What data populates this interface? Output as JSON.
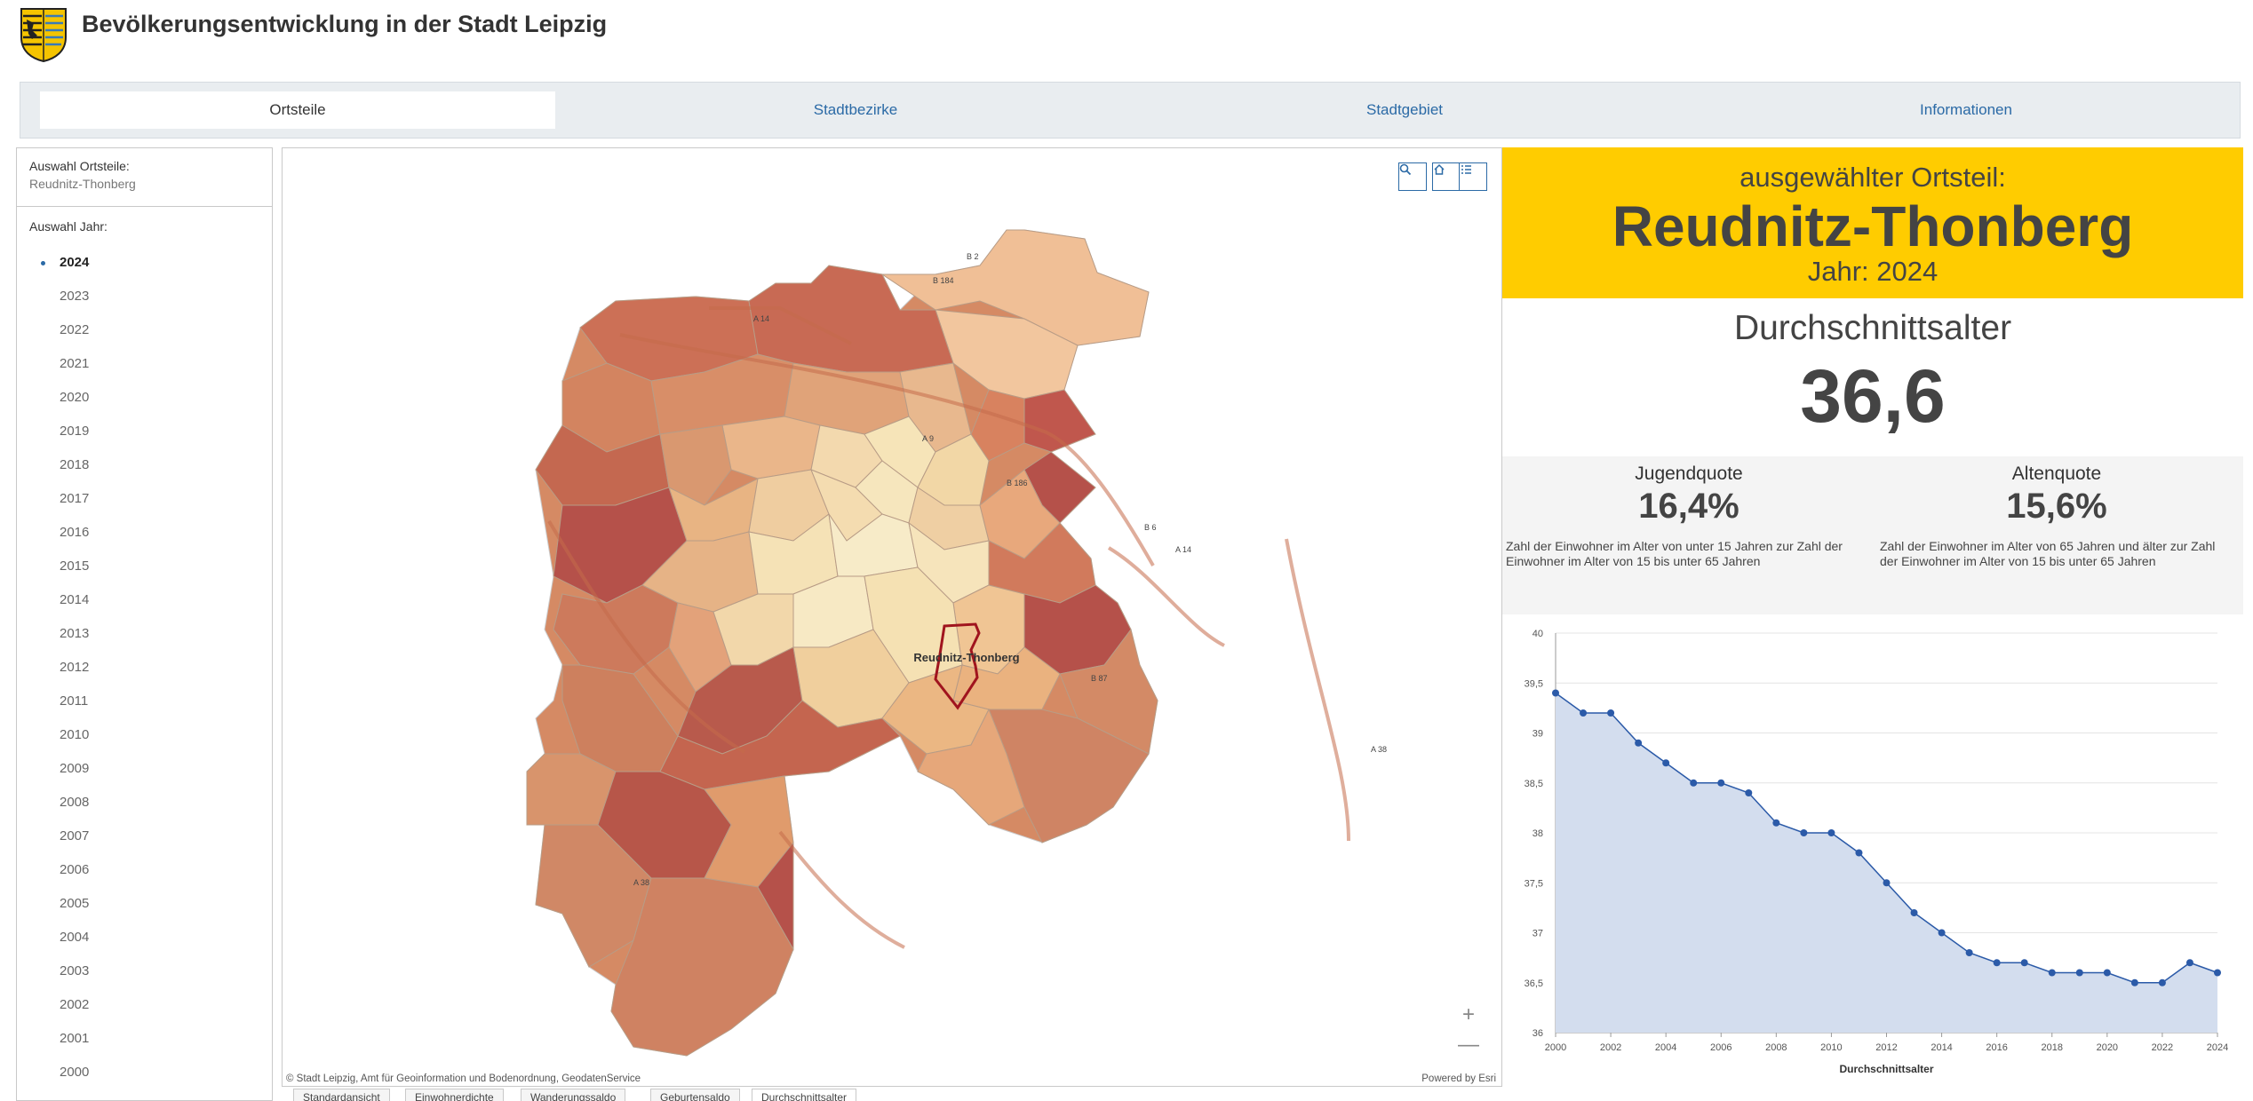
{
  "header": {
    "title": "Bevölkerungsentwicklung in der Stadt Leipzig"
  },
  "tabs": [
    {
      "label": "Ortsteile",
      "active": true
    },
    {
      "label": "Stadtbezirke",
      "active": false
    },
    {
      "label": "Stadtgebiet",
      "active": false
    },
    {
      "label": "Informationen",
      "active": false
    }
  ],
  "leftpanel": {
    "ortsteil_label": "Auswahl Ortsteile:",
    "ortsteil_value": "Reudnitz-Thonberg",
    "year_label": "Auswahl Jahr:",
    "years": [
      "2024",
      "2023",
      "2022",
      "2021",
      "2020",
      "2019",
      "2018",
      "2017",
      "2016",
      "2015",
      "2014",
      "2013",
      "2012",
      "2011",
      "2010",
      "2009",
      "2008",
      "2007",
      "2006",
      "2005",
      "2004",
      "2003",
      "2002",
      "2001",
      "2000"
    ],
    "selected_year": "2024"
  },
  "map": {
    "selected_label": "Reudnitz-Thonberg",
    "road_labels": [
      "B 184",
      "B 2",
      "A 14",
      "B 6",
      "B 87",
      "A 9",
      "A 38",
      "B 186",
      "A 14",
      "A 38"
    ],
    "attribution": "© Stadt Leipzig, Amt für Geoinformation und Bodenordnung, GeodatenService",
    "powered_by": "Powered by Esri",
    "tools": [
      "search-icon",
      "home-icon",
      "legend-icon"
    ],
    "zoom_in": "+",
    "zoom_out": "—",
    "colors": {
      "selected_outline": "#a0141e",
      "low": "#f6e6b8",
      "mid": "#e5a878",
      "high": "#b5514a"
    }
  },
  "bottom_tabs": [
    "Standardansicht",
    "Einwohnerdichte",
    "Wanderungssaldo",
    "Geburtensaldo",
    "Durchschnittsalter"
  ],
  "bottom_tab_active": "Durchschnittsalter",
  "summary": {
    "subtitle": "ausgewählter Ortsteil:",
    "name": "Reudnitz-Thonberg",
    "year": "Jahr: 2024",
    "metric_label": "Durchschnittsalter",
    "metric_value": "36,6",
    "jugend_title": "Jugendquote",
    "jugend_value": "16,4%",
    "jugend_desc": "Zahl der Einwohner im Alter von unter 15 Jahren zur Zahl der Einwohner im Alter von 15 bis unter 65 Jahren",
    "alten_title": "Altenquote",
    "alten_value": "15,6%",
    "alten_desc": "Zahl der Einwohner im Alter von 65 Jahren und älter zur Zahl der Einwohner im Alter von 15 bis unter 65 Jahren",
    "accent_color": "#ffcc00"
  },
  "chart_data": {
    "type": "area",
    "title": "",
    "xlabel": "Durchschnittsalter",
    "ylabel": "",
    "x": [
      2000,
      2001,
      2002,
      2003,
      2004,
      2005,
      2006,
      2007,
      2008,
      2009,
      2010,
      2011,
      2012,
      2013,
      2014,
      2015,
      2016,
      2017,
      2018,
      2019,
      2020,
      2021,
      2022,
      2023,
      2024
    ],
    "values": [
      39.4,
      39.2,
      39.2,
      38.9,
      38.7,
      38.5,
      38.5,
      38.4,
      38.1,
      38.0,
      38.0,
      37.8,
      37.5,
      37.2,
      37.0,
      36.8,
      36.7,
      36.7,
      36.6,
      36.6,
      36.6,
      36.5,
      36.5,
      36.7,
      36.6
    ],
    "ylim": [
      36,
      40
    ],
    "yticks": [
      "36",
      "36,5",
      "37",
      "37,5",
      "38",
      "38,5",
      "39",
      "39,5",
      "40"
    ],
    "xticks": [
      "2000",
      "2002",
      "2004",
      "2006",
      "2008",
      "2010",
      "2012",
      "2014",
      "2016",
      "2018",
      "2020",
      "2022",
      "2024"
    ],
    "grid": true,
    "line_color": "#2b5aa8",
    "fill_color": "#d3ddee"
  }
}
